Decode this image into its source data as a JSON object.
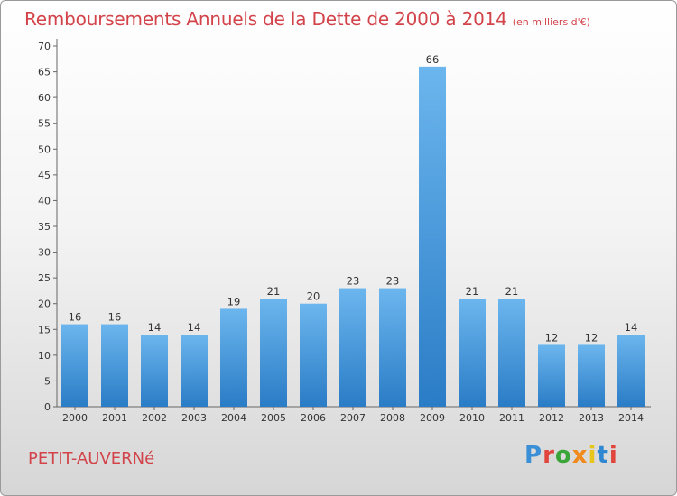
{
  "chart_data": {
    "type": "bar",
    "title": "Remboursements Annuels de la Dette de 2000 à 2014",
    "subtitle": "(en milliers d'€)",
    "categories": [
      "2000",
      "2001",
      "2002",
      "2003",
      "2004",
      "2005",
      "2006",
      "2007",
      "2008",
      "2009",
      "2010",
      "2011",
      "2012",
      "2013",
      "2014"
    ],
    "values": [
      16,
      16,
      14,
      14,
      19,
      21,
      20,
      23,
      23,
      66,
      21,
      21,
      12,
      12,
      14
    ],
    "ylim": [
      0,
      70
    ],
    "yticks": [
      0,
      5,
      10,
      15,
      20,
      25,
      30,
      35,
      40,
      45,
      50,
      55,
      60,
      65,
      70
    ],
    "grid": false,
    "bar_color": "#4a9de0",
    "xlabel": "",
    "ylabel": ""
  },
  "footer": {
    "commune": "PETIT-AUVERNé",
    "brand": "Proxiti"
  },
  "colors": {
    "title": "#d2434a",
    "bar_top": "#6cb6ee",
    "bar_bottom": "#2a7cc6"
  }
}
